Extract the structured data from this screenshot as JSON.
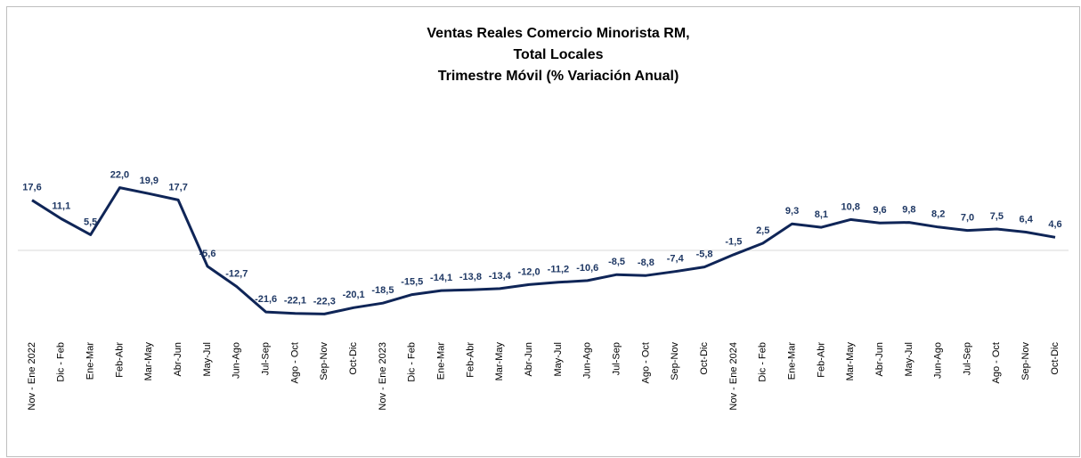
{
  "chart_data": {
    "type": "line",
    "title": [
      "Ventas Reales Comercio Minorista RM,",
      "Total Locales",
      "Trimestre Móvil (% Variación Anual)"
    ],
    "categories": [
      "Nov - Ene 2022",
      "Dic - Feb",
      "Ene-Mar",
      "Feb-Abr",
      "Mar-May",
      "Abr-Jun",
      "May-Jul",
      "Jun-Ago",
      "Jul-Sep",
      "Ago - Oct",
      "Sep-Nov",
      "Oct-Dic",
      "Nov - Ene 2023",
      "Dic - Feb",
      "Ene-Mar",
      "Feb-Abr",
      "Mar-May",
      "Abr-Jun",
      "May-Jul",
      "Jun-Ago",
      "Jul-Sep",
      "Ago - Oct",
      "Sep-Nov",
      "Oct-Dic",
      "Nov - Ene 2024",
      "Dic - Feb",
      "Ene-Mar",
      "Feb-Abr",
      "Mar-May",
      "Abr-Jun",
      "May-Jul",
      "Jun-Ago",
      "Jul-Sep",
      "Ago - Oct",
      "Sep-Nov",
      "Oct-Dic"
    ],
    "values": [
      17.6,
      11.1,
      5.5,
      22.0,
      19.9,
      17.7,
      -5.6,
      -12.7,
      -21.6,
      -22.1,
      -22.3,
      -20.1,
      -18.5,
      -15.5,
      -14.1,
      -13.8,
      -13.4,
      -12.0,
      -11.2,
      -10.6,
      -8.5,
      -8.8,
      -7.4,
      -5.8,
      -1.5,
      2.5,
      9.3,
      8.1,
      10.8,
      9.6,
      9.8,
      8.2,
      7.0,
      7.5,
      6.4,
      4.6
    ],
    "value_labels": [
      "17,6",
      "11,1",
      "5,5",
      "22,0",
      "19,9",
      "17,7",
      "-5,6",
      "-12,7",
      "-21,6",
      "-22,1",
      "-22,3",
      "-20,1",
      "-18,5",
      "-15,5",
      "-14,1",
      "-13,8",
      "-13,4",
      "-12,0",
      "-11,2",
      "-10,6",
      "-8,5",
      "-8,8",
      "-7,4",
      "-5,8",
      "-1,5",
      "2,5",
      "9,3",
      "8,1",
      "10,8",
      "9,6",
      "9,8",
      "8,2",
      "7,0",
      "7,5",
      "6,4",
      "4,6"
    ],
    "color": "#0f2557",
    "ylim": [
      -30,
      30
    ]
  }
}
